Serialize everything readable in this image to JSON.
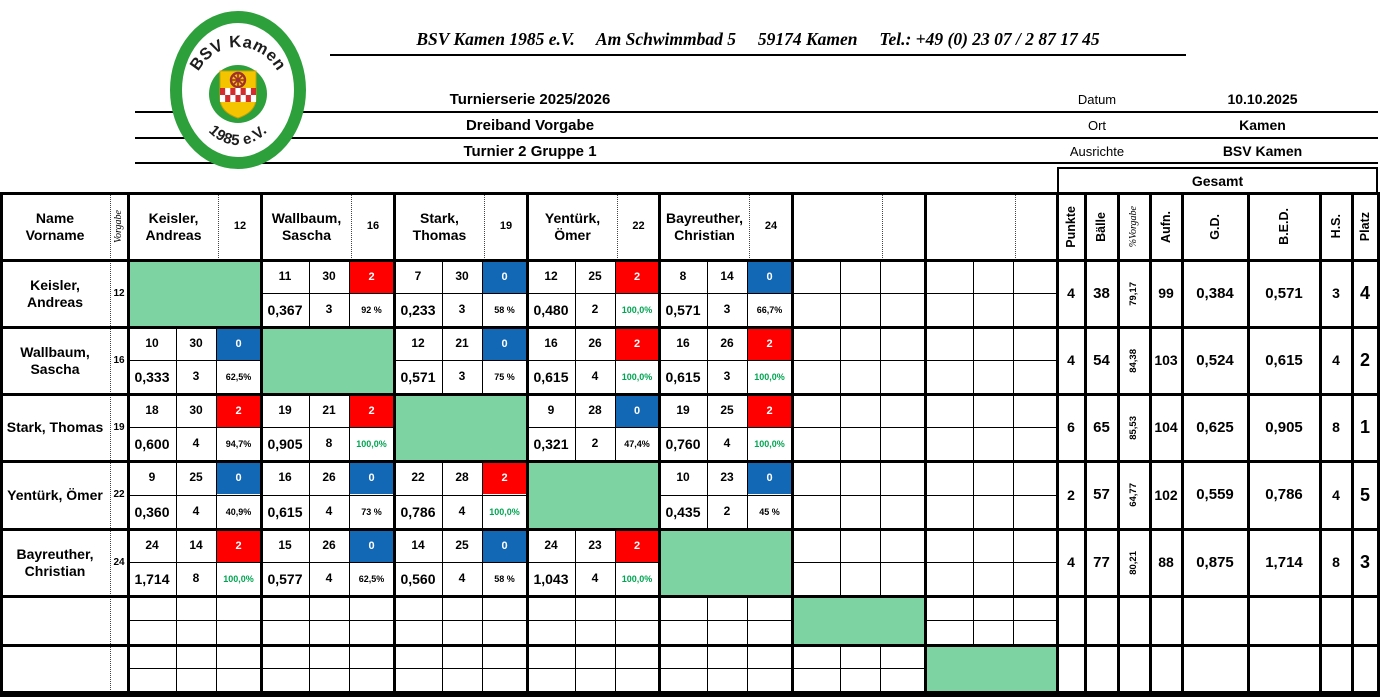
{
  "header": {
    "club_line": "BSV Kamen 1985 e.V.     Am Schwimmbad 5     59174 Kamen     Tel.: +49 (0) 23 07 / 2 87 17 45",
    "logo": {
      "arc_top": "BSV Kamen",
      "arc_bottom": "1985 e.V."
    },
    "titles": [
      "Turnierserie 2025/2026",
      "Dreiband Vorgabe",
      "Turnier 2  Gruppe 1"
    ],
    "info": [
      {
        "label": "Datum",
        "value": "10.10.2025"
      },
      {
        "label": "Ort",
        "value": "Kamen"
      },
      {
        "label": "Ausrichte",
        "value": "BSV Kamen"
      }
    ]
  },
  "table": {
    "corner_header": [
      "Name",
      "Vorname"
    ],
    "vorgabe_header": "Vorgabe",
    "gesamt_header": "Gesamt",
    "gesamt_columns": [
      "Punkte",
      "Bälle",
      "%Vorgabe",
      "Aufn.",
      "G.D.",
      "B.E.D.",
      "H.S.",
      "Platz"
    ],
    "opponents": [
      {
        "name_lines": [
          "Keisler,",
          "Andreas"
        ],
        "vorgabe": "12"
      },
      {
        "name_lines": [
          "Wallbaum,",
          "Sascha"
        ],
        "vorgabe": "16"
      },
      {
        "name_lines": [
          "Stark,",
          "Thomas"
        ],
        "vorgabe": "19"
      },
      {
        "name_lines": [
          "Yentürk,",
          "Ömer"
        ],
        "vorgabe": "22"
      },
      {
        "name_lines": [
          "Bayreuther,",
          "Christian"
        ],
        "vorgabe": "24"
      },
      {
        "name_lines": [],
        "vorgabe": ""
      },
      {
        "name_lines": [],
        "vorgabe": ""
      }
    ],
    "rows": [
      {
        "name_lines": [
          "Keisler,",
          "Andreas"
        ],
        "vorgabe": "12",
        "matches": [
          {
            "diagonal": true
          },
          {
            "score": "11",
            "opp": "30",
            "points": "2",
            "result": "win",
            "avg": "0,367",
            "hs": "3",
            "pct": "92 %",
            "pct_ok": false
          },
          {
            "score": "7",
            "opp": "30",
            "points": "0",
            "result": "loss",
            "avg": "0,233",
            "hs": "3",
            "pct": "58 %",
            "pct_ok": false
          },
          {
            "score": "12",
            "opp": "25",
            "points": "2",
            "result": "win",
            "avg": "0,480",
            "hs": "2",
            "pct": "100,0%",
            "pct_ok": true
          },
          {
            "score": "8",
            "opp": "14",
            "points": "0",
            "result": "loss",
            "avg": "0,571",
            "hs": "3",
            "pct": "66,7%",
            "pct_ok": false
          },
          {},
          {}
        ],
        "totals": {
          "punkte": "4",
          "baelle": "38",
          "pct_vorgabe": "79,17",
          "aufn": "99",
          "gd": "0,384",
          "bed": "0,571",
          "hs": "3",
          "platz": "4"
        }
      },
      {
        "name_lines": [
          "Wallbaum,",
          "Sascha"
        ],
        "vorgabe": "16",
        "matches": [
          {
            "score": "10",
            "opp": "30",
            "points": "0",
            "result": "loss",
            "avg": "0,333",
            "hs": "3",
            "pct": "62,5%",
            "pct_ok": false
          },
          {
            "diagonal": true
          },
          {
            "score": "12",
            "opp": "21",
            "points": "0",
            "result": "loss",
            "avg": "0,571",
            "hs": "3",
            "pct": "75 %",
            "pct_ok": false
          },
          {
            "score": "16",
            "opp": "26",
            "points": "2",
            "result": "win",
            "avg": "0,615",
            "hs": "4",
            "pct": "100,0%",
            "pct_ok": true
          },
          {
            "score": "16",
            "opp": "26",
            "points": "2",
            "result": "win",
            "avg": "0,615",
            "hs": "3",
            "pct": "100,0%",
            "pct_ok": true
          },
          {},
          {}
        ],
        "totals": {
          "punkte": "4",
          "baelle": "54",
          "pct_vorgabe": "84,38",
          "aufn": "103",
          "gd": "0,524",
          "bed": "0,615",
          "hs": "4",
          "platz": "2"
        }
      },
      {
        "name_lines": [
          "Stark, Thomas"
        ],
        "vorgabe": "19",
        "matches": [
          {
            "score": "18",
            "opp": "30",
            "points": "2",
            "result": "win",
            "avg": "0,600",
            "hs": "4",
            "pct": "94,7%",
            "pct_ok": false
          },
          {
            "score": "19",
            "opp": "21",
            "points": "2",
            "result": "win",
            "avg": "0,905",
            "hs": "8",
            "pct": "100,0%",
            "pct_ok": true
          },
          {
            "diagonal": true
          },
          {
            "score": "9",
            "opp": "28",
            "points": "0",
            "result": "loss",
            "avg": "0,321",
            "hs": "2",
            "pct": "47,4%",
            "pct_ok": false
          },
          {
            "score": "19",
            "opp": "25",
            "points": "2",
            "result": "win",
            "avg": "0,760",
            "hs": "4",
            "pct": "100,0%",
            "pct_ok": true
          },
          {},
          {}
        ],
        "totals": {
          "punkte": "6",
          "baelle": "65",
          "pct_vorgabe": "85,53",
          "aufn": "104",
          "gd": "0,625",
          "bed": "0,905",
          "hs": "8",
          "platz": "1"
        }
      },
      {
        "name_lines": [
          "Yentürk, Ömer"
        ],
        "vorgabe": "22",
        "matches": [
          {
            "score": "9",
            "opp": "25",
            "points": "0",
            "result": "loss",
            "avg": "0,360",
            "hs": "4",
            "pct": "40,9%",
            "pct_ok": false
          },
          {
            "score": "16",
            "opp": "26",
            "points": "0",
            "result": "loss",
            "avg": "0,615",
            "hs": "4",
            "pct": "73 %",
            "pct_ok": false
          },
          {
            "score": "22",
            "opp": "28",
            "points": "2",
            "result": "win",
            "avg": "0,786",
            "hs": "4",
            "pct": "100,0%",
            "pct_ok": true
          },
          {
            "diagonal": true
          },
          {
            "score": "10",
            "opp": "23",
            "points": "0",
            "result": "loss",
            "avg": "0,435",
            "hs": "2",
            "pct": "45 %",
            "pct_ok": false
          },
          {},
          {}
        ],
        "totals": {
          "punkte": "2",
          "baelle": "57",
          "pct_vorgabe": "64,77",
          "aufn": "102",
          "gd": "0,559",
          "bed": "0,786",
          "hs": "4",
          "platz": "5"
        }
      },
      {
        "name_lines": [
          "Bayreuther,",
          "Christian"
        ],
        "vorgabe": "24",
        "matches": [
          {
            "score": "24",
            "opp": "14",
            "points": "2",
            "result": "win",
            "avg": "1,714",
            "hs": "8",
            "pct": "100,0%",
            "pct_ok": true
          },
          {
            "score": "15",
            "opp": "26",
            "points": "0",
            "result": "loss",
            "avg": "0,577",
            "hs": "4",
            "pct": "62,5%",
            "pct_ok": false
          },
          {
            "score": "14",
            "opp": "25",
            "points": "0",
            "result": "loss",
            "avg": "0,560",
            "hs": "4",
            "pct": "58 %",
            "pct_ok": false
          },
          {
            "score": "24",
            "opp": "23",
            "points": "2",
            "result": "win",
            "avg": "1,043",
            "hs": "4",
            "pct": "100,0%",
            "pct_ok": true
          },
          {
            "diagonal": true
          },
          {},
          {}
        ],
        "totals": {
          "punkte": "4",
          "baelle": "77",
          "pct_vorgabe": "80,21",
          "aufn": "88",
          "gd": "0,875",
          "bed": "1,714",
          "hs": "8",
          "platz": "3"
        }
      }
    ],
    "extra_empty_rows": 2
  },
  "colors": {
    "diagonal_green": "#7ed3a2",
    "win_red": "#fe0000",
    "loss_blue": "#1268b5",
    "pct_green": "#00a551",
    "logo_green": "#2da03c",
    "shield_yellow": "#f5c400",
    "shield_red": "#d22c2c"
  }
}
